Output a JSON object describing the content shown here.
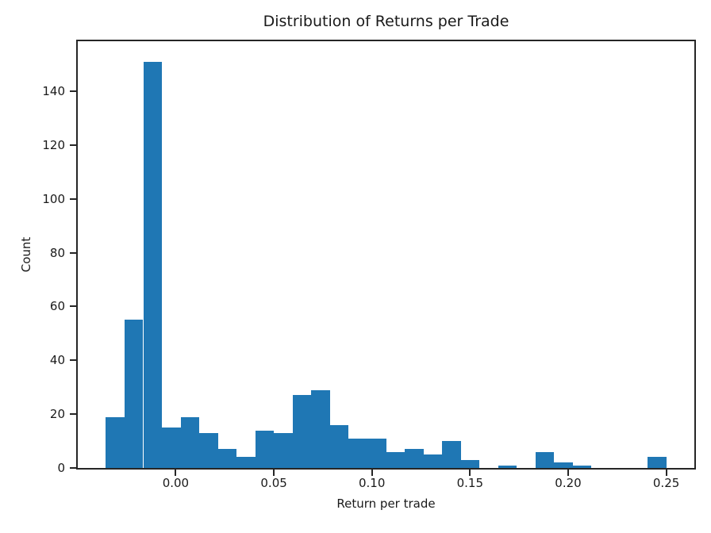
{
  "chart_data": {
    "type": "bar",
    "subtype": "histogram",
    "title": "Distribution of Returns per Trade",
    "xlabel": "Return per trade",
    "ylabel": "Count",
    "bar_color": "#1f77b4",
    "axis_color": "#262626",
    "text_color": "#1a1a1a",
    "background": "#ffffff",
    "grid": false,
    "legend": null,
    "n_bins": 30,
    "bin_edges": [
      -0.0356,
      -0.02608,
      -0.01656,
      -0.00704,
      0.00248,
      0.012,
      0.02152,
      0.03104,
      0.04056,
      0.05008,
      0.0596,
      0.06912,
      0.07864,
      0.08816,
      0.09768,
      0.1072,
      0.11672,
      0.12624,
      0.13576,
      0.14528,
      0.1548,
      0.16432,
      0.17384,
      0.18336,
      0.19288,
      0.2024,
      0.21192,
      0.22144,
      0.23096,
      0.24048,
      0.25
    ],
    "counts": [
      19,
      55,
      151,
      15,
      19,
      13,
      7,
      4,
      14,
      13,
      27,
      29,
      16,
      11,
      11,
      6,
      7,
      5,
      10,
      3,
      0,
      1,
      0,
      6,
      2,
      1,
      0,
      0,
      0,
      4
    ],
    "xlim": [
      -0.04991,
      0.26431
    ],
    "ylim": [
      0,
      158.55
    ],
    "xticks": {
      "values": [
        0.0,
        0.05,
        0.1,
        0.15,
        0.2,
        0.25
      ],
      "labels": [
        "0.00",
        "0.05",
        "0.10",
        "0.15",
        "0.20",
        "0.25"
      ]
    },
    "yticks": {
      "values": [
        0,
        20,
        40,
        60,
        80,
        100,
        120,
        140
      ],
      "labels": [
        "0",
        "20",
        "40",
        "60",
        "80",
        "100",
        "120",
        "140"
      ]
    }
  }
}
